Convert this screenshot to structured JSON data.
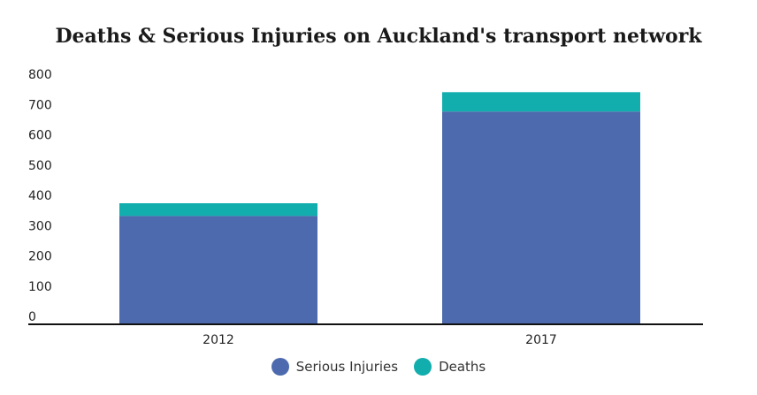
{
  "chart_data": {
    "type": "bar",
    "stacked": true,
    "title": "Deaths & Serious Injuries on Auckland's transport network",
    "categories": [
      "2012",
      "2017"
    ],
    "series": [
      {
        "name": "Serious Injuries",
        "color": "#4c6aad",
        "values": [
          358,
          703
        ]
      },
      {
        "name": "Deaths",
        "color": "#12adad",
        "values": [
          42,
          64
        ]
      }
    ],
    "yticks": [
      0,
      100,
      200,
      300,
      400,
      500,
      600,
      700,
      800
    ],
    "ylim": [
      0,
      800
    ],
    "grid": false,
    "legend_position": "bottom"
  }
}
